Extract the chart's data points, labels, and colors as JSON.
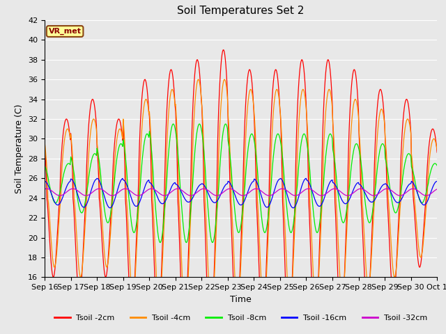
{
  "title": "Soil Temperatures Set 2",
  "xlabel": "Time",
  "ylabel": "Soil Temperature (C)",
  "ylim": [
    16,
    42
  ],
  "yticks": [
    16,
    18,
    20,
    22,
    24,
    26,
    28,
    30,
    32,
    34,
    36,
    38,
    40,
    42
  ],
  "background_color": "#e8e8e8",
  "plot_bg_color": "#e8e8e8",
  "grid_color": "#ffffff",
  "colors": {
    "Tsoil -2cm": "#ff0000",
    "Tsoil -4cm": "#ff8c00",
    "Tsoil -8cm": "#00ee00",
    "Tsoil -16cm": "#0000ff",
    "Tsoil -32cm": "#cc00cc"
  },
  "legend_labels": [
    "Tsoil -2cm",
    "Tsoil -4cm",
    "Tsoil -8cm",
    "Tsoil -16cm",
    "Tsoil -32cm"
  ],
  "legend_label_box": "VR_met",
  "n_days": 15,
  "points_per_day": 48,
  "start_day": 16,
  "figsize": [
    6.4,
    4.8
  ],
  "dpi": 100
}
